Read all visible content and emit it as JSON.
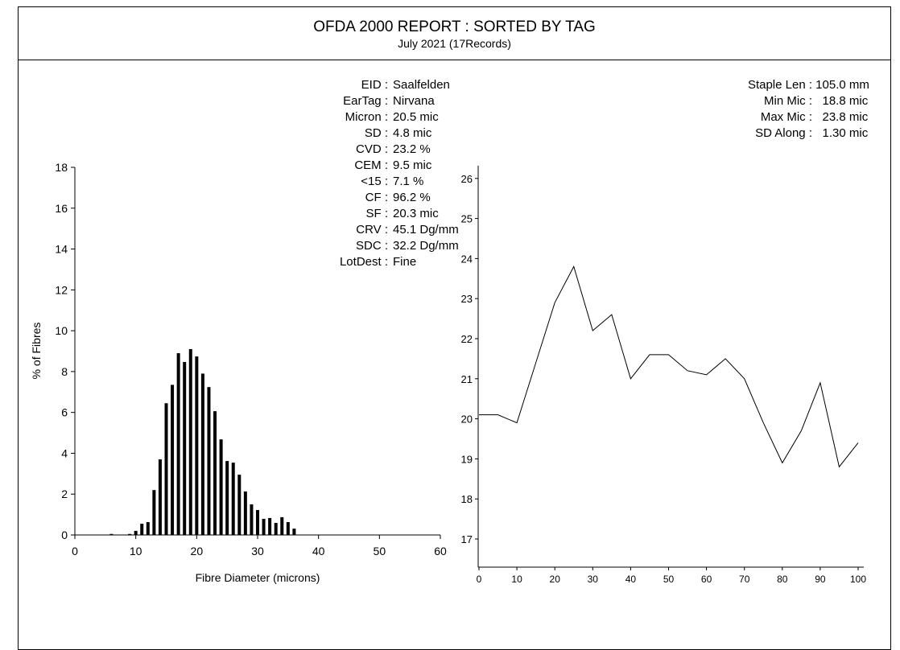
{
  "header": {
    "title": "OFDA 2000 REPORT : SORTED BY TAG",
    "subtitle": "July 2021 (17Records)"
  },
  "stats_left": [
    {
      "label": "EID :",
      "value": " Saalfelden"
    },
    {
      "label": "EarTag :",
      "value": " Nirvana"
    },
    {
      "label": "Micron :",
      "value": "   20.5 mic"
    },
    {
      "label": "SD :",
      "value": "     4.8 mic"
    },
    {
      "label": "CVD :",
      "value": "   23.2 %"
    },
    {
      "label": "CEM :",
      "value": "     9.5 mic"
    },
    {
      "label": "<15 :",
      "value": "     7.1 %"
    },
    {
      "label": "CF :",
      "value": "   96.2 %"
    },
    {
      "label": "SF :",
      "value": "   20.3 mic"
    },
    {
      "label": "CRV :",
      "value": "   45.1 Dg/mm"
    },
    {
      "label": "SDC :",
      "value": "   32.2 Dg/mm"
    },
    {
      "label": "LotDest :",
      "value": " Fine"
    }
  ],
  "stats_right": [
    {
      "label": "Staple Len :",
      "value": " 105.0 mm"
    },
    {
      "label": "Min Mic :",
      "value": "   18.8 mic"
    },
    {
      "label": "Max Mic :",
      "value": "   23.8 mic"
    },
    {
      "label": "SD Along :",
      "value": "   1.30 mic"
    }
  ],
  "chart_data": [
    {
      "type": "bar",
      "title": "",
      "xlabel": "Fibre Diameter (microns)",
      "ylabel": "% of Fibres",
      "xlim": [
        0,
        60
      ],
      "ylim": [
        0,
        18
      ],
      "xticks": [
        "0",
        "10",
        "20",
        "30",
        "40",
        "50",
        "60"
      ],
      "yticks": [
        "0",
        "2",
        "4",
        "6",
        "8",
        "10",
        "12",
        "14",
        "16",
        "18"
      ],
      "x": [
        6,
        9,
        10,
        11,
        12,
        13,
        14,
        15,
        16,
        17,
        18,
        19,
        20,
        21,
        22,
        23,
        24,
        25,
        26,
        27,
        28,
        29,
        30,
        31,
        32,
        33,
        34,
        35,
        36
      ],
      "values": [
        0.05,
        0.05,
        0.2,
        0.55,
        0.63,
        2.2,
        3.7,
        6.45,
        7.35,
        8.9,
        8.47,
        9.1,
        8.74,
        7.9,
        7.24,
        6.06,
        4.68,
        3.62,
        3.54,
        2.95,
        2.13,
        1.5,
        1.22,
        0.79,
        0.83,
        0.59,
        0.87,
        0.63,
        0.31
      ]
    },
    {
      "type": "line",
      "title": "",
      "xlabel": "",
      "ylabel": "",
      "xlim": [
        0,
        100
      ],
      "ylim": [
        16.3,
        26.3
      ],
      "xticks": [
        "0",
        "10",
        "20",
        "30",
        "40",
        "50",
        "60",
        "70",
        "80",
        "90",
        "100"
      ],
      "yticks": [
        "17",
        "18",
        "19",
        "20",
        "21",
        "22",
        "23",
        "24",
        "25",
        "26"
      ],
      "x": [
        0,
        5,
        10,
        15,
        20,
        25,
        30,
        35,
        40,
        45,
        50,
        55,
        60,
        65,
        70,
        75,
        80,
        85,
        90,
        95,
        100
      ],
      "values": [
        20.1,
        20.1,
        19.9,
        21.4,
        22.9,
        23.8,
        22.2,
        22.6,
        21.0,
        21.6,
        21.6,
        21.2,
        21.1,
        21.5,
        21.0,
        19.9,
        18.9,
        19.7,
        20.9,
        18.8,
        19.4
      ]
    }
  ]
}
